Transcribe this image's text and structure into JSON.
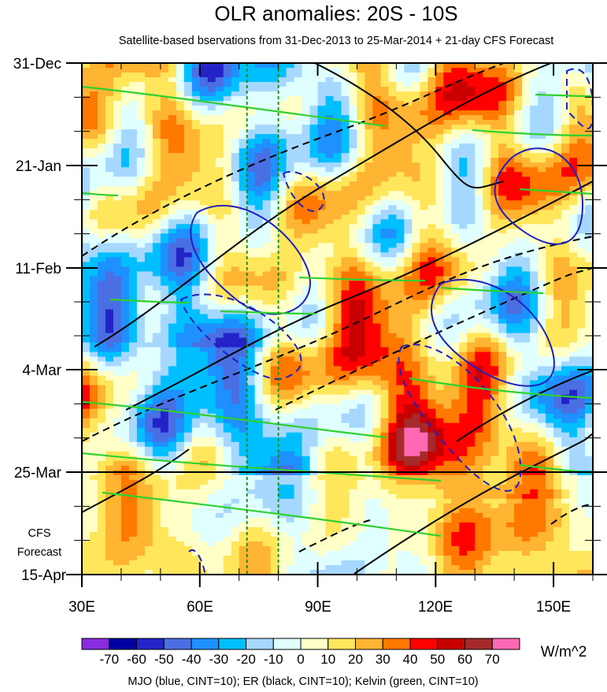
{
  "chart_data": {
    "type": "heatmap",
    "title": "OLR anomalies: 20S - 10S",
    "subtitle": "Satellite-based bservations from 31-Dec-2013 to 25-Mar-2014 + 21-day CFS Forecast",
    "x_axis": {
      "range": [
        "30E",
        "160E"
      ],
      "tick_labels": [
        "30E",
        "60E",
        "90E",
        "120E",
        "150E"
      ]
    },
    "y_axis": {
      "range": [
        "31-Dec-2013",
        "15-Apr-2014"
      ],
      "tick_labels": [
        "31-Dec",
        "21-Jan",
        "11-Feb",
        "4-Mar",
        "25-Mar",
        "15-Apr"
      ]
    },
    "forecast_label_lines": [
      "CFS",
      "Forecast"
    ],
    "observation_end": "25-Mar",
    "colorbar": {
      "unit": "W/m^2",
      "labels": [
        "-70",
        "-60",
        "-50",
        "-40",
        "-30",
        "-20",
        "-10",
        "0",
        "10",
        "20",
        "30",
        "40",
        "50",
        "60",
        "70"
      ],
      "colors": [
        "#8a2be2",
        "#0000a0",
        "#2323c8",
        "#4a6fe3",
        "#1e90ff",
        "#00bfff",
        "#a6d8ff",
        "#e0ffff",
        "#ffffc8",
        "#ffe65a",
        "#ffb432",
        "#ff7800",
        "#ff0000",
        "#c80000",
        "#a52a2a",
        "#ff69b4"
      ]
    },
    "guide_lines_lon": [
      72,
      80
    ],
    "footer": "MJO (blue, CINT=10); ER (black, CINT=10); Kelvin (green, CINT=10)",
    "contour_colors": {
      "mjo": "#2020c0",
      "er": "#000000",
      "kelvin": "#30d030"
    },
    "grid": false
  }
}
